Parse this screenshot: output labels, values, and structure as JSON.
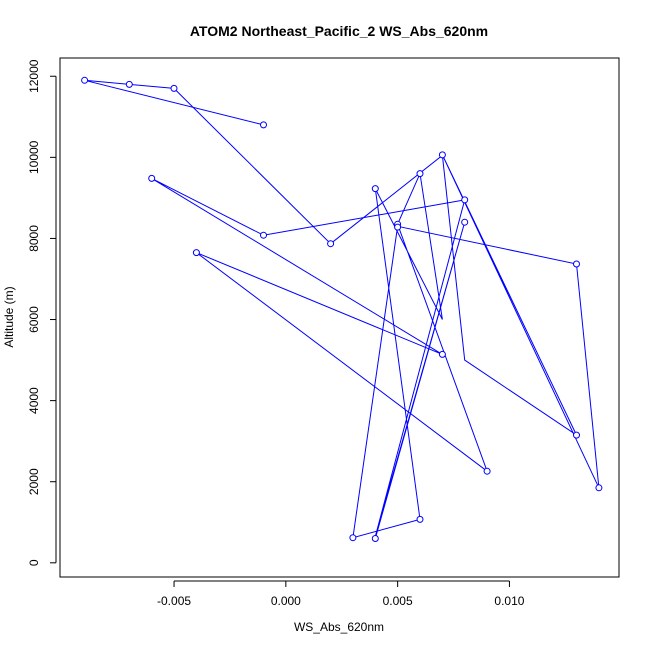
{
  "chart_data": {
    "type": "line",
    "title": "ATOM2 Northeast_Pacific_2 WS_Abs_620nm",
    "xlabel": "WS_Abs_620nm",
    "ylabel": "Altitude (m)",
    "xlim": [
      -0.0101,
      0.0149
    ],
    "ylim": [
      -350,
      12450
    ],
    "x_ticks": [
      -0.005,
      0.0,
      0.005,
      0.01
    ],
    "x_tick_labels": [
      "-0.005",
      "0.000",
      "0.005",
      "0.010"
    ],
    "y_ticks": [
      0,
      2000,
      4000,
      6000,
      8000,
      10000,
      12000
    ],
    "y_tick_labels": [
      "0",
      "2000",
      "4000",
      "6000",
      "8000",
      "10000",
      "12000"
    ],
    "grid": false,
    "series": [
      {
        "color": "#0000ff",
        "markers": "open-circle",
        "points": [
          {
            "x": 0.004,
            "y": 600
          },
          {
            "x": 0.008,
            "y": 8400
          },
          {
            "x": 0.004,
            "y": 650
          },
          {
            "x": 0.008,
            "y": 8950
          },
          {
            "x": -0.001,
            "y": 8080
          },
          {
            "x": -0.006,
            "y": 9480
          },
          {
            "x": 0.007,
            "y": 5140
          },
          {
            "x": -0.004,
            "y": 7650
          },
          {
            "x": 0.009,
            "y": 2260
          },
          {
            "x": 0.005,
            "y": 8350
          },
          {
            "x": 0.006,
            "y": 9600
          },
          {
            "x": 0.007,
            "y": 6000
          },
          {
            "x": 0.004,
            "y": 9230
          },
          {
            "x": 0.006,
            "y": 1070
          },
          {
            "x": 0.003,
            "y": 620
          },
          {
            "x": 0.005,
            "y": 8300
          },
          {
            "x": 0.013,
            "y": 7370
          },
          {
            "x": 0.014,
            "y": 1850
          },
          {
            "x": 0.007,
            "y": 10060
          },
          {
            "x": 0.013,
            "y": 3150
          },
          {
            "x": 0.008,
            "y": 5000
          },
          {
            "x": 0.007,
            "y": 10050
          },
          {
            "x": 0.002,
            "y": 7870
          },
          {
            "x": -0.005,
            "y": 11700
          },
          {
            "x": -0.007,
            "y": 11800
          },
          {
            "x": -0.009,
            "y": 11900
          },
          {
            "x": -0.001,
            "y": 10800
          }
        ],
        "marker_points": [
          {
            "x": 0.004,
            "y": 600
          },
          {
            "x": 0.008,
            "y": 8400
          },
          {
            "x": 0.008,
            "y": 8950
          },
          {
            "x": -0.001,
            "y": 8080
          },
          {
            "x": -0.006,
            "y": 9480
          },
          {
            "x": 0.007,
            "y": 5140
          },
          {
            "x": -0.004,
            "y": 7650
          },
          {
            "x": 0.009,
            "y": 2260
          },
          {
            "x": 0.005,
            "y": 8350
          },
          {
            "x": 0.006,
            "y": 9600
          },
          {
            "x": 0.004,
            "y": 9230
          },
          {
            "x": 0.006,
            "y": 1070
          },
          {
            "x": 0.003,
            "y": 620
          },
          {
            "x": 0.005,
            "y": 8280
          },
          {
            "x": 0.013,
            "y": 7370
          },
          {
            "x": 0.014,
            "y": 1850
          },
          {
            "x": 0.007,
            "y": 10060
          },
          {
            "x": 0.013,
            "y": 3150
          },
          {
            "x": 0.002,
            "y": 7870
          },
          {
            "x": -0.005,
            "y": 11700
          },
          {
            "x": -0.007,
            "y": 11800
          },
          {
            "x": -0.009,
            "y": 11900
          },
          {
            "x": -0.001,
            "y": 10800
          }
        ]
      }
    ]
  }
}
